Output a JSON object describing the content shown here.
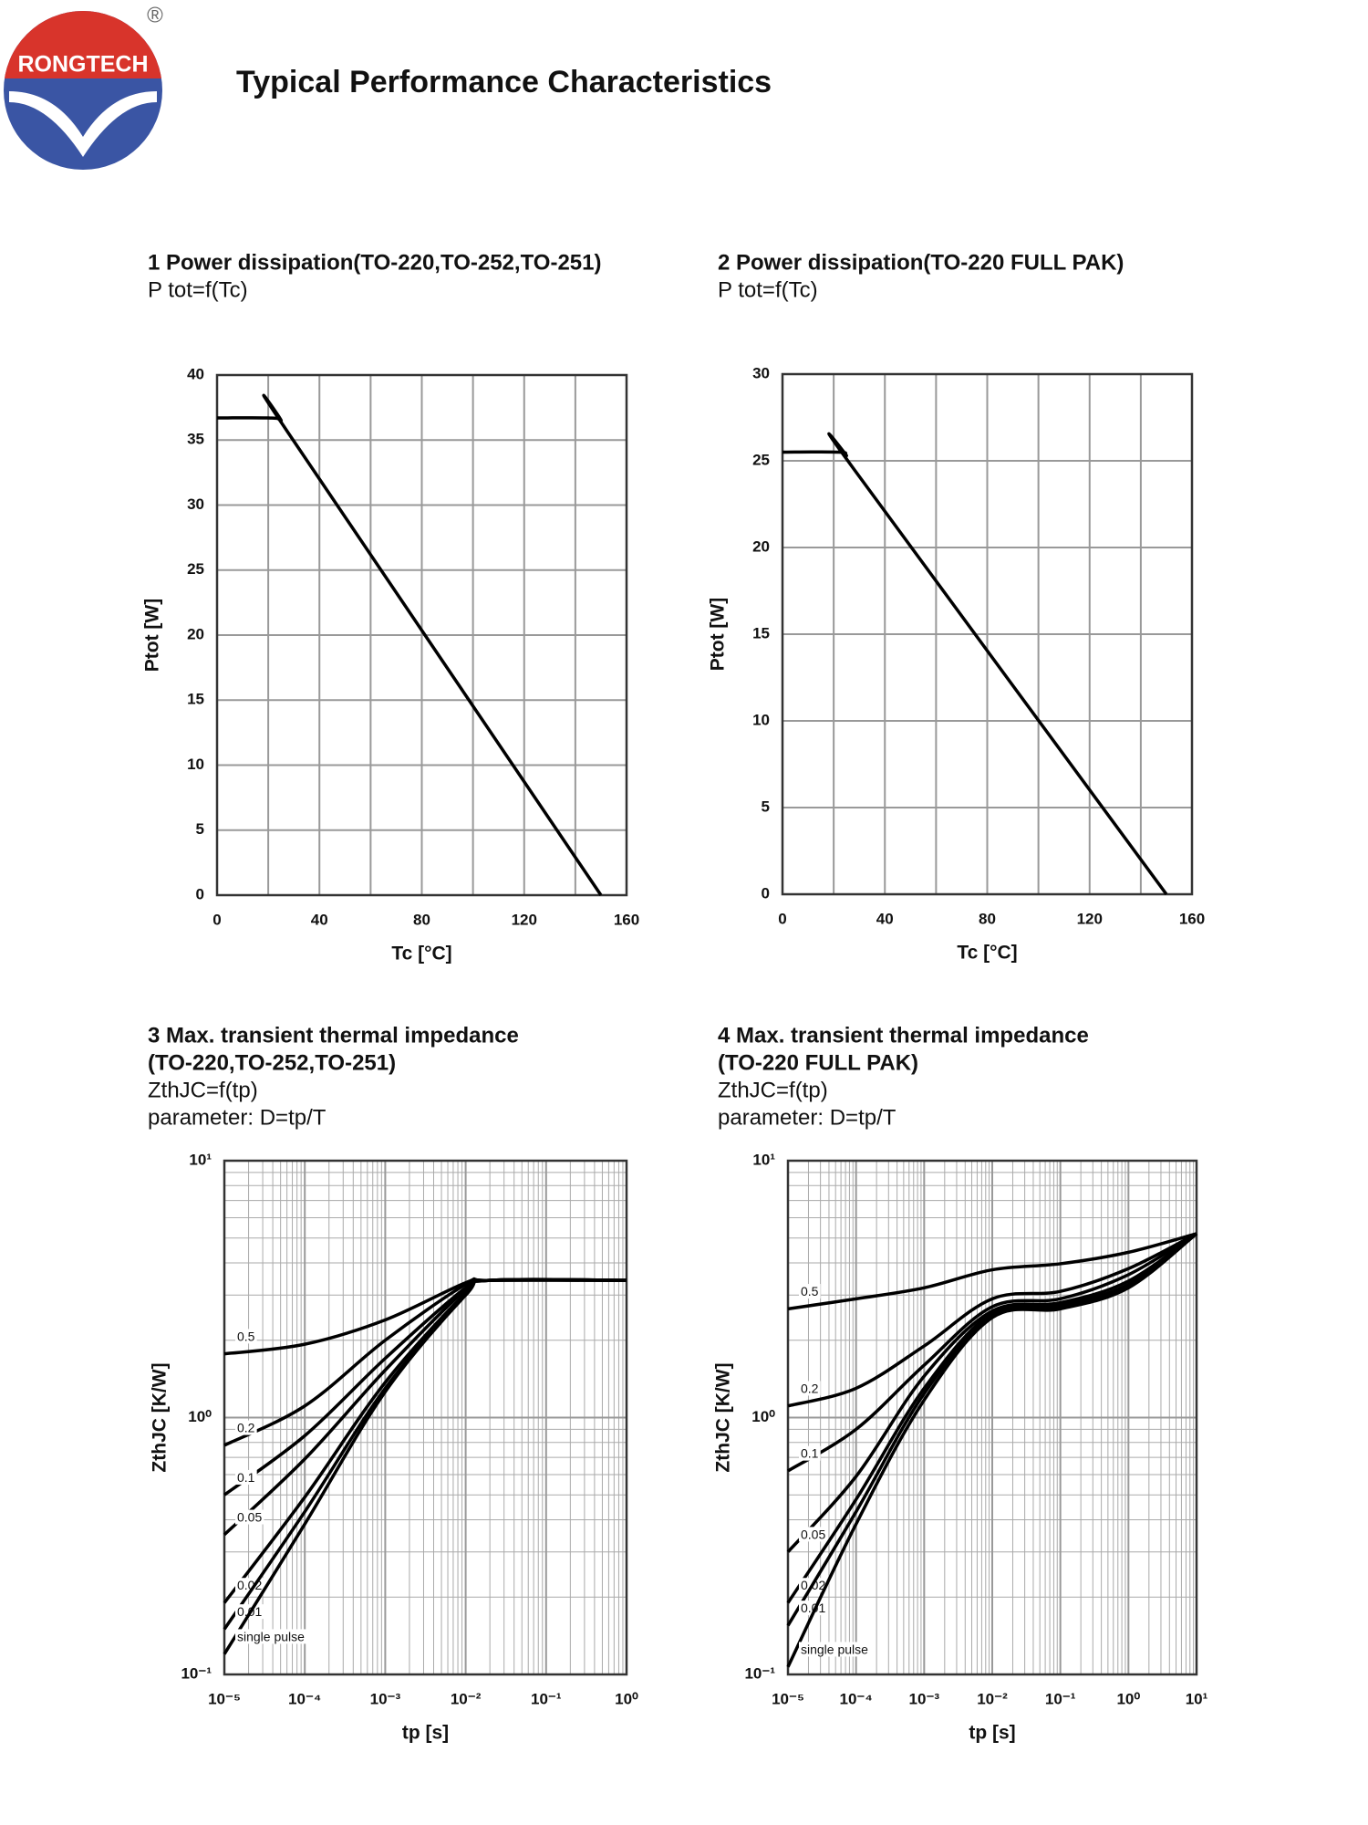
{
  "header": {
    "logo": "RONGTECH",
    "registered": "®",
    "title": "Typical Performance Characteristics"
  },
  "chart_data": [
    {
      "type": "line",
      "title": [
        "1 Power dissipation(TO-220,TO-252,TO-251)"
      ],
      "subtitle": [
        "P tot=f(Tc)"
      ],
      "x_label": "Tc [°C]",
      "y_label": "Ptot [W]",
      "xlim": [
        0,
        160
      ],
      "xticks": [
        0,
        40,
        80,
        120,
        160
      ],
      "x_minor_ticks": [
        20,
        60,
        100,
        140
      ],
      "ylim": [
        0,
        40
      ],
      "yticks": [
        0,
        5,
        10,
        15,
        20,
        25,
        30,
        35,
        40
      ],
      "grid": true,
      "x": [
        0,
        20,
        25,
        28,
        150
      ],
      "series": [
        {
          "color": "#000000",
          "values": [
            36.7,
            36.7,
            36.5,
            35.5,
            0
          ]
        }
      ]
    },
    {
      "type": "line",
      "title": [
        "2 Power dissipation(TO-220 FULL PAK)"
      ],
      "subtitle": [
        "P tot=f(Tc)"
      ],
      "x_label": "Tc [°C]",
      "y_label": "Ptot [W]",
      "xlim": [
        0,
        160
      ],
      "xticks": [
        0,
        40,
        80,
        120,
        160
      ],
      "x_minor_ticks": [
        20,
        60,
        100,
        140
      ],
      "ylim": [
        0,
        30
      ],
      "yticks": [
        0,
        5,
        10,
        15,
        20,
        25,
        30
      ],
      "grid": true,
      "x": [
        0,
        22,
        25,
        28,
        150
      ],
      "series": [
        {
          "color": "#000000",
          "values": [
            25.5,
            25.5,
            25.3,
            24.5,
            0
          ]
        }
      ]
    },
    {
      "type": "line",
      "title": [
        "3 Max. transient thermal impedance",
        "(TO-220,TO-252,TO-251)"
      ],
      "subtitle": [
        "ZthJC=f(tp)",
        "parameter: D=tp/T"
      ],
      "x_label": "tp [s]",
      "y_label": "ZthJC [K/W]",
      "log_x": true,
      "log_y": true,
      "xlim": [
        1e-05,
        1
      ],
      "xticks": [
        {
          "value": 1e-05,
          "label": "10⁻⁵"
        },
        {
          "value": 0.0001,
          "label": "10⁻⁴"
        },
        {
          "value": 0.001,
          "label": "10⁻³"
        },
        {
          "value": 0.01,
          "label": "10⁻²"
        },
        {
          "value": 0.1,
          "label": "10⁻¹"
        },
        {
          "value": 1,
          "label": "10⁰"
        }
      ],
      "ylim": [
        0.1,
        10
      ],
      "yticks": [
        {
          "value": 0.1,
          "label": "10⁻¹"
        },
        {
          "value": 1,
          "label": "10⁰"
        },
        {
          "value": 10,
          "label": "10¹"
        }
      ],
      "grid": true,
      "x": [
        1e-05,
        0.0001,
        0.001,
        0.01,
        0.02,
        1
      ],
      "series": [
        {
          "name": "0.5",
          "color": "#000000",
          "values": [
            1.77,
            1.93,
            2.4,
            3.35,
            3.42,
            3.42
          ]
        },
        {
          "name": "0.2",
          "color": "#000000",
          "values": [
            0.78,
            1.11,
            2.0,
            3.3,
            3.42,
            3.42
          ]
        },
        {
          "name": "0.1",
          "color": "#000000",
          "values": [
            0.5,
            0.85,
            1.7,
            3.2,
            3.42,
            3.42
          ]
        },
        {
          "name": "0.05",
          "color": "#000000",
          "values": [
            0.35,
            0.69,
            1.53,
            3.15,
            3.42,
            3.42
          ]
        },
        {
          "name": "0.02",
          "color": "#000000",
          "values": [
            0.19,
            0.49,
            1.37,
            3.05,
            3.42,
            3.42
          ]
        },
        {
          "name": "0.01",
          "color": "#000000",
          "values": [
            0.15,
            0.43,
            1.3,
            3.0,
            3.42,
            3.42
          ]
        },
        {
          "name": "single pulse",
          "color": "#000000",
          "values": [
            0.12,
            0.385,
            1.26,
            3.0,
            3.42,
            3.42
          ]
        }
      ]
    },
    {
      "type": "line",
      "title": [
        "4 Max. transient thermal impedance",
        "(TO-220 FULL PAK)"
      ],
      "subtitle": [
        "ZthJC=f(tp)",
        "parameter: D=tp/T"
      ],
      "x_label": "tp [s]",
      "y_label": "ZthJC [K/W]",
      "log_x": true,
      "log_y": true,
      "xlim": [
        1e-05,
        10
      ],
      "xticks": [
        {
          "value": 1e-05,
          "label": "10⁻⁵"
        },
        {
          "value": 0.0001,
          "label": "10⁻⁴"
        },
        {
          "value": 0.001,
          "label": "10⁻³"
        },
        {
          "value": 0.01,
          "label": "10⁻²"
        },
        {
          "value": 0.1,
          "label": "10⁻¹"
        },
        {
          "value": 1,
          "label": "10⁰"
        },
        {
          "value": 10,
          "label": "10¹"
        }
      ],
      "ylim": [
        0.1,
        10
      ],
      "yticks": [
        {
          "value": 0.1,
          "label": "10⁻¹"
        },
        {
          "value": 1,
          "label": "10⁰"
        },
        {
          "value": 10,
          "label": "10¹"
        }
      ],
      "grid": true,
      "x": [
        1e-05,
        0.0001,
        0.001,
        0.01,
        0.1,
        1,
        10
      ],
      "series": [
        {
          "name": "0.5",
          "color": "#000000",
          "values": [
            2.65,
            2.9,
            3.2,
            3.76,
            3.97,
            4.4,
            5.2
          ]
        },
        {
          "name": "0.2",
          "color": "#000000",
          "values": [
            1.11,
            1.3,
            1.9,
            2.9,
            3.1,
            3.8,
            5.2
          ]
        },
        {
          "name": "0.1",
          "color": "#000000",
          "values": [
            0.62,
            0.9,
            1.6,
            2.7,
            2.9,
            3.6,
            5.2
          ]
        },
        {
          "name": "0.05",
          "color": "#000000",
          "values": [
            0.3,
            0.59,
            1.45,
            2.6,
            2.8,
            3.4,
            5.2
          ]
        },
        {
          "name": "0.02",
          "color": "#000000",
          "values": [
            0.19,
            0.48,
            1.3,
            2.55,
            2.75,
            3.3,
            5.2
          ]
        },
        {
          "name": "0.01",
          "color": "#000000",
          "values": [
            0.155,
            0.43,
            1.24,
            2.5,
            2.7,
            3.25,
            5.2
          ]
        },
        {
          "name": "single pulse",
          "color": "#000000",
          "values": [
            0.107,
            0.385,
            1.17,
            2.45,
            2.65,
            3.2,
            5.2
          ]
        }
      ]
    }
  ]
}
